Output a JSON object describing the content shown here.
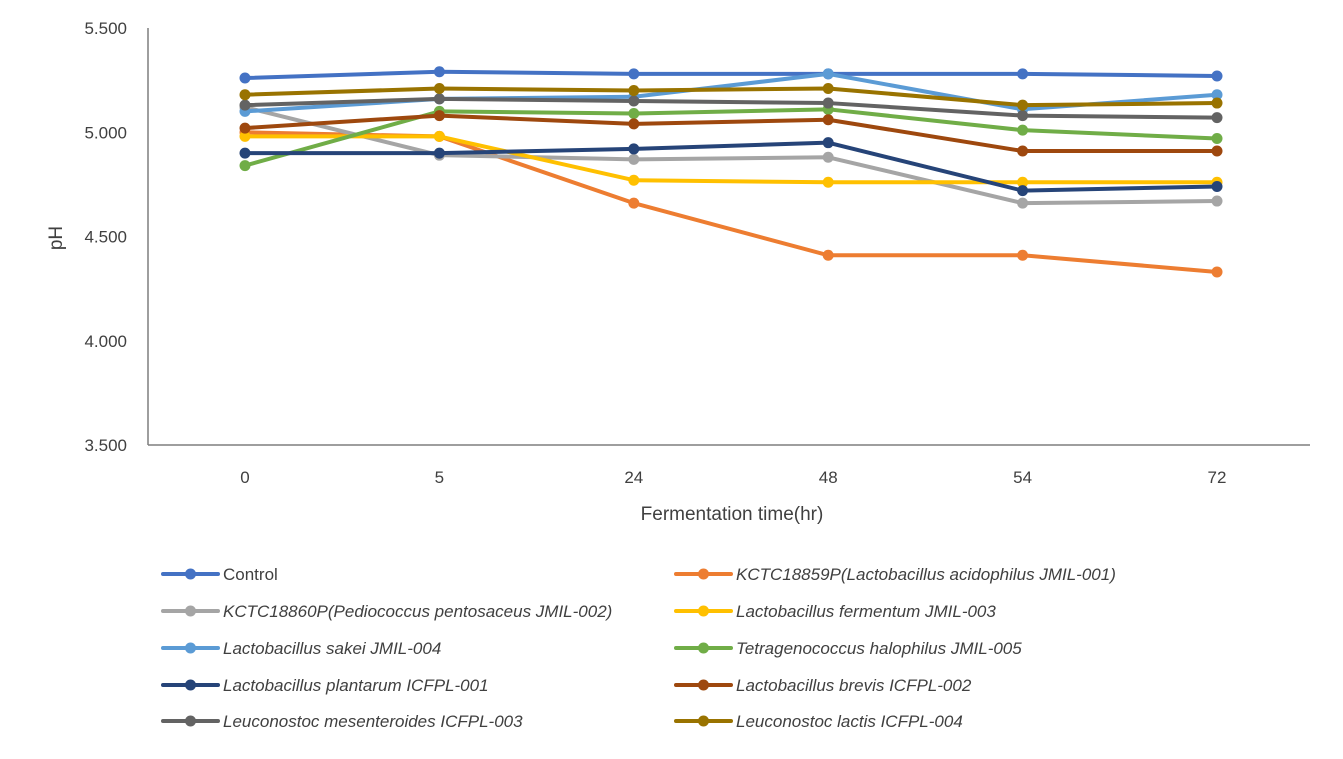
{
  "chart_data": {
    "type": "line",
    "title": "",
    "xlabel": "Fermentation time(hr)",
    "ylabel": "pH",
    "ylim": [
      3.5,
      5.5
    ],
    "yticks": [
      "3.500",
      "4.000",
      "4.500",
      "5.000",
      "5.500"
    ],
    "yticks_values": [
      3.5,
      4.0,
      4.5,
      5.0,
      5.5
    ],
    "categories": [
      "0",
      "5",
      "24",
      "48",
      "54",
      "72"
    ],
    "grid": false,
    "legend_position": "bottom",
    "series": [
      {
        "name": "Control",
        "italic": false,
        "color": "#4472C4",
        "values": [
          5.26,
          5.29,
          5.28,
          5.28,
          5.28,
          5.27
        ]
      },
      {
        "name": "KCTC18859P(Lactobacillus acidophilus JMIL-001)",
        "italic": true,
        "color": "#ED7D31",
        "values": [
          5.0,
          4.98,
          4.66,
          4.41,
          4.41,
          4.33
        ]
      },
      {
        "name": "KCTC18860P(Pediococcus pentosaceus JMIL-002)",
        "italic": true,
        "color": "#A5A5A5",
        "values": [
          5.12,
          4.89,
          4.87,
          4.88,
          4.66,
          4.67
        ]
      },
      {
        "name": "Lactobacillus fermentum JMIL-003",
        "italic": true,
        "color": "#FFC000",
        "values": [
          4.98,
          4.98,
          4.77,
          4.76,
          4.76,
          4.76
        ]
      },
      {
        "name": "Lactobacillus sakei JMIL-004",
        "italic": true,
        "color": "#5B9BD5",
        "values": [
          5.1,
          5.16,
          5.17,
          5.28,
          5.11,
          5.18
        ]
      },
      {
        "name": "Tetragenococcus halophilus JMIL-005",
        "italic": true,
        "color": "#70AD47",
        "values": [
          4.84,
          5.1,
          5.09,
          5.11,
          5.01,
          4.97
        ]
      },
      {
        "name": "Lactobacillus plantarum ICFPL-001",
        "italic": true,
        "color": "#264478",
        "values": [
          4.9,
          4.9,
          4.92,
          4.95,
          4.72,
          4.74
        ]
      },
      {
        "name": "Lactobacillus brevis ICFPL-002",
        "italic": true,
        "color": "#9E480E",
        "values": [
          5.02,
          5.08,
          5.04,
          5.06,
          4.91,
          4.91
        ]
      },
      {
        "name": "Leuconostoc mesenteroides ICFPL-003",
        "italic": true,
        "color": "#636363",
        "values": [
          5.13,
          5.16,
          5.15,
          5.14,
          5.08,
          5.07
        ]
      },
      {
        "name": "Leuconostoc lactis ICFPL-004",
        "italic": true,
        "color": "#997300",
        "values": [
          5.18,
          5.21,
          5.2,
          5.21,
          5.13,
          5.14
        ]
      }
    ]
  }
}
